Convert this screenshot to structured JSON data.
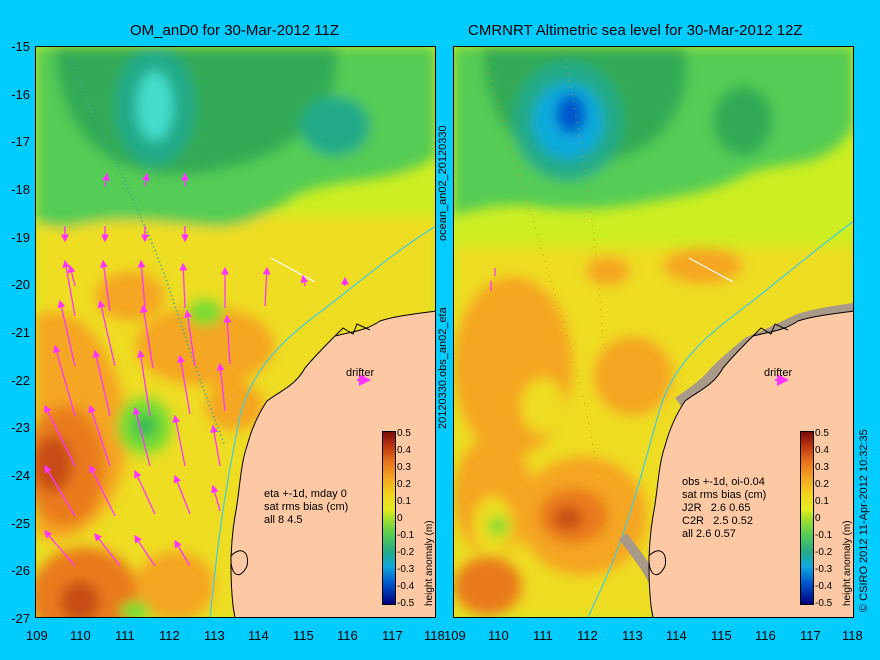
{
  "left_panel": {
    "title": "OM_anD0 for 30-Mar-2012 11Z",
    "drifter": "drifter",
    "stats": "eta +-1d, mday 0\nsat rms bias (cm)\nall 8 4.5",
    "side_label": "20120330.obs_an02_eta"
  },
  "right_panel": {
    "title": "CMRNRT Altimetric sea level  for 30-Mar-2012 12Z",
    "drifter": "drifter",
    "stats": "obs +-1d, oi-0.04\nsat rms bias (cm)\nJ2R   2.6 0.65\nC2R   2.5 0.52\nall 2.6 0.57",
    "side_label": "ocean_an02_20120330",
    "credit": "© CSIRO 2012   11-Apr-2012 10:32:35"
  },
  "y_ticks": [
    "-15",
    "-16",
    "-17",
    "-18",
    "-19",
    "-20",
    "-21",
    "-22",
    "-23",
    "-24",
    "-25",
    "-26",
    "-27"
  ],
  "x_ticks": [
    "109",
    "110",
    "111",
    "112",
    "113",
    "114",
    "115",
    "116",
    "117",
    "118"
  ],
  "colorbar": {
    "labels": [
      "0.5",
      "0.4",
      "0.3",
      "0.2",
      "0.1",
      "0",
      "-0.1",
      "-0.2",
      "-0.3",
      "-0.4",
      "-0.5"
    ],
    "title": "height anomaly (m)"
  },
  "colors": {
    "background": "#00ccff",
    "land": "#fcc9a4",
    "vector": "#ff33ff",
    "track_line": "#44ccdd"
  }
}
